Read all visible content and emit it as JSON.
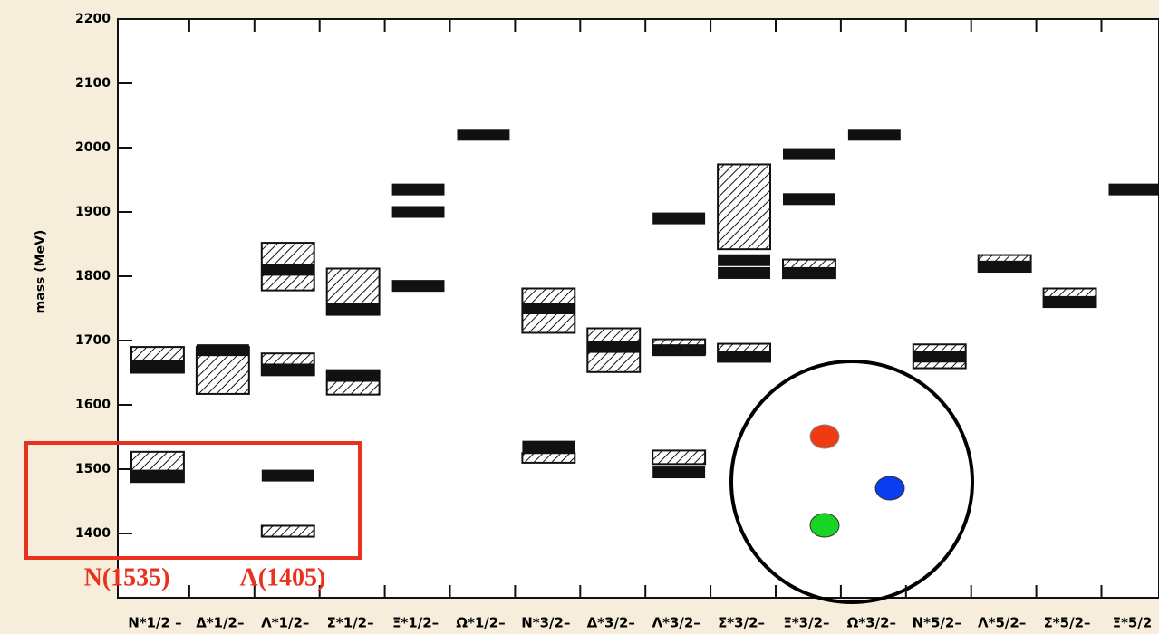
{
  "chart_data": {
    "type": "spectrum",
    "y_label": "mass (MeV)",
    "ylim": [
      1300,
      2200
    ],
    "yticks": [
      1400,
      1500,
      1600,
      1700,
      1800,
      1900,
      2000,
      2100,
      2200
    ],
    "categories": [
      "N*1/2 –",
      "Δ*1/2–",
      "Λ*1/2–",
      "Σ*1/2–",
      "Ξ*1/2–",
      "Ω*1/2–",
      "N*3/2–",
      "Δ*3/2–",
      "Λ*3/2–",
      "Σ*3/2–",
      "Ξ*3/2–",
      "Ω*3/2–",
      "N*5/2–",
      "Λ*5/2–",
      "Σ*5/2–",
      "Ξ*5/2"
    ],
    "levels": [
      {
        "solid": [
          1660,
          1490
        ],
        "hatched": [
          [
            1650,
            1690
          ],
          [
            1480,
            1527
          ]
        ]
      },
      {
        "solid": [
          1685
        ],
        "hatched": [
          [
            1617,
            1690
          ]
        ]
      },
      {
        "solid": [
          1810,
          1655,
          1490
        ],
        "hatched": [
          [
            1778,
            1852
          ],
          [
            1646,
            1680
          ],
          [
            1395,
            1412
          ]
        ]
      },
      {
        "solid": [
          1750,
          1645
        ],
        "hatched": [
          [
            1740,
            1812
          ],
          [
            1616,
            1654
          ]
        ]
      },
      {
        "solid": [
          1935,
          1900,
          1785
        ],
        "hatched": []
      },
      {
        "solid": [
          2020
        ],
        "hatched": []
      },
      {
        "solid": [
          1750,
          1535
        ],
        "hatched": [
          [
            1712,
            1781
          ],
          [
            1510,
            1525
          ]
        ]
      },
      {
        "solid": [
          1690
        ],
        "hatched": [
          [
            1651,
            1719
          ]
        ]
      },
      {
        "solid": [
          1890,
          1685,
          1495
        ],
        "hatched": [
          [
            1678,
            1702
          ],
          [
            1508,
            1529
          ]
        ]
      },
      {
        "solid": [
          1825,
          1805,
          1675
        ],
        "hatched": [
          [
            1842,
            1974
          ],
          [
            1667,
            1695
          ]
        ]
      },
      {
        "solid": [
          1990,
          1920,
          1805
        ],
        "hatched": [
          [
            1797,
            1826
          ]
        ]
      },
      {
        "solid": [
          2020
        ],
        "hatched": []
      },
      {
        "solid": [
          1675
        ],
        "hatched": [
          [
            1657,
            1694
          ]
        ]
      },
      {
        "solid": [
          1815
        ],
        "hatched": [
          [
            1807,
            1833
          ]
        ]
      },
      {
        "solid": [
          1760
        ],
        "hatched": [
          [
            1752,
            1781
          ]
        ]
      },
      {
        "solid": [
          1935
        ],
        "hatched": []
      }
    ],
    "annotations": [
      "N(1535)",
      "Λ(1405)"
    ],
    "annotation_color": "#e8321e"
  }
}
